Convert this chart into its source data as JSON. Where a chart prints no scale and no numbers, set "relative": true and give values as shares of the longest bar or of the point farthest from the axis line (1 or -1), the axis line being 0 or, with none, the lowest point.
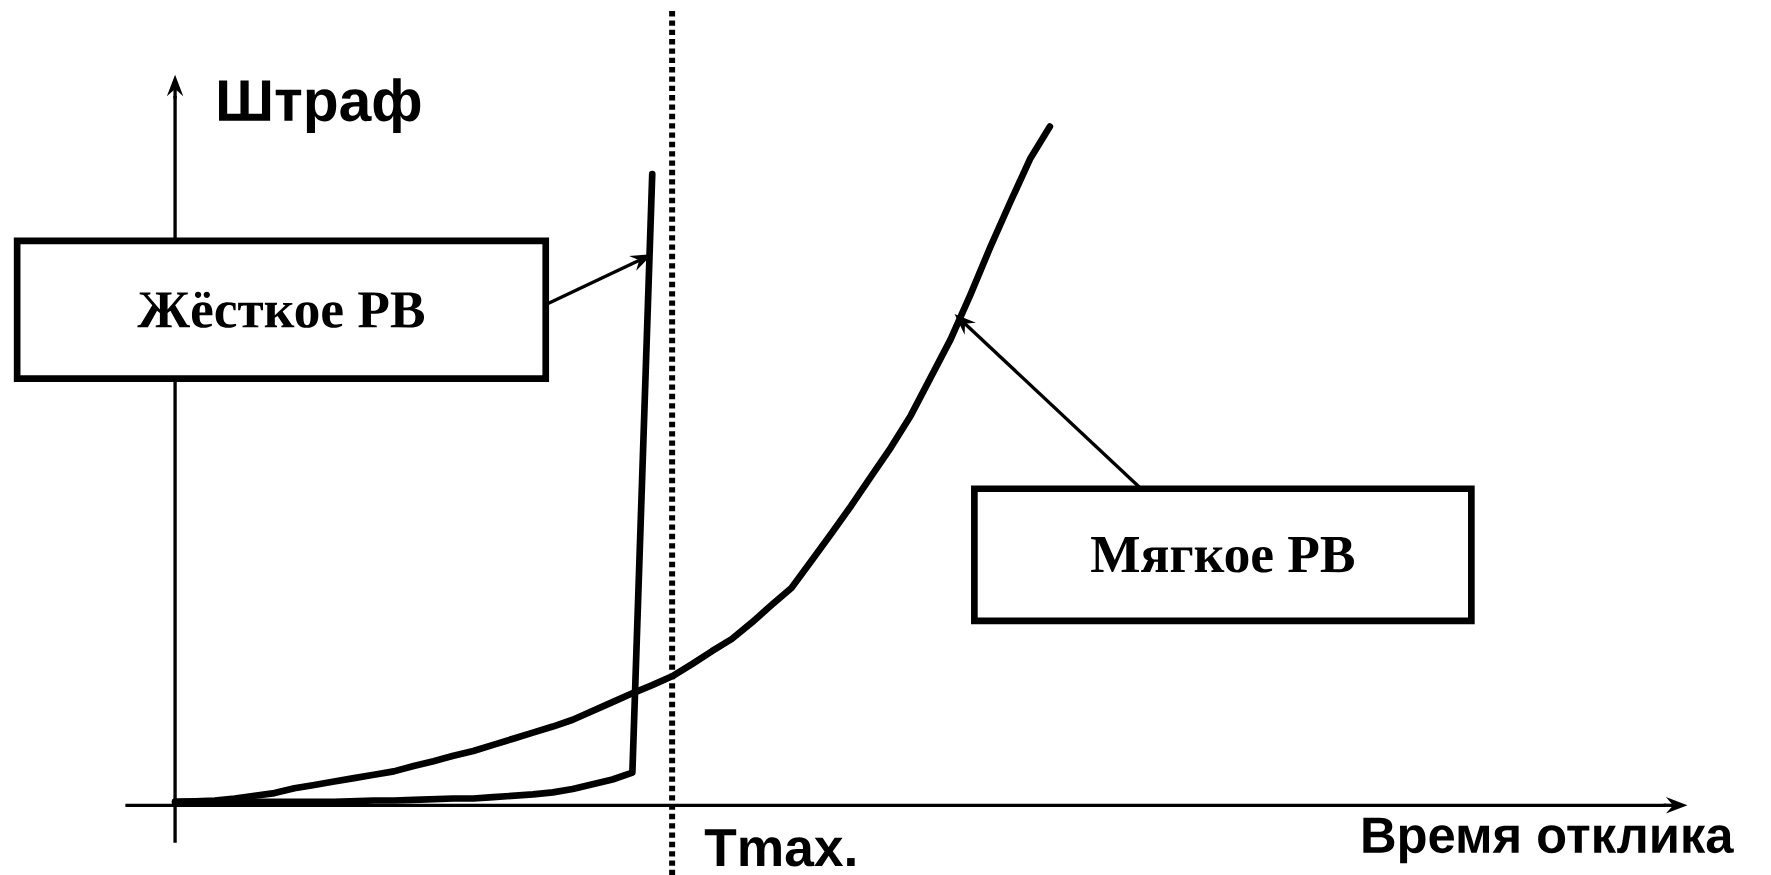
{
  "chart_data": {
    "type": "line",
    "relative": true,
    "annotations": [
      "Время отклика"
    ],
    "ylabel": "Штраф",
    "marker": "none",
    "line_style": "solid",
    "categories": [
      null,
      null,
      null,
      null,
      null,
      null,
      null,
      null,
      null,
      null,
      null,
      null,
      null,
      null,
      null,
      null,
      null,
      null,
      null,
      null,
      null,
      null,
      null,
      null,
      null,
      null,
      null,
      null,
      null,
      null,
      null,
      null,
      null,
      null,
      null,
      null,
      null,
      null,
      null,
      null,
      null,
      null,
      null,
      null,
      null
    ],
    "series": [
      {
        "name": "Жёсткое РВ",
        "color": "#000000",
        "values": [
          0.005,
          0.005,
          0.005,
          0.005,
          0.005,
          0.005,
          0.005,
          0.005,
          0.005,
          0.006,
          0.007,
          0.007,
          0.008,
          0.009,
          0.01,
          0.01,
          0.012,
          0.014,
          0.016,
          0.019,
          0.024,
          0.031,
          0.038,
          0.048,
          0.93,
          null,
          null,
          null,
          null,
          null,
          null,
          null,
          null,
          null,
          null,
          null,
          null,
          null,
          null,
          null,
          null,
          null,
          null,
          null,
          null
        ]
      },
      {
        "name": "Мягкое РВ",
        "color": "#000000",
        "values": [
          0.005,
          0.006,
          0.007,
          0.01,
          0.014,
          0.018,
          0.025,
          0.03,
          0.035,
          0.04,
          0.045,
          0.05,
          0.058,
          0.065,
          0.073,
          0.08,
          0.089,
          0.098,
          0.107,
          0.116,
          0.126,
          0.139,
          0.152,
          0.165,
          0.177,
          0.19,
          0.208,
          0.227,
          0.245,
          0.269,
          0.295,
          0.32,
          0.36,
          0.4,
          0.441,
          0.484,
          0.527,
          0.574,
          0.63,
          0.686,
          0.752,
          0.822,
          0.888,
          0.952,
          1.0
        ]
      }
    ],
    "ref_lines": [
      {
        "axis": "x",
        "label": "Tmax.",
        "line_style": "dotted",
        "color": "#000000"
      }
    ]
  }
}
